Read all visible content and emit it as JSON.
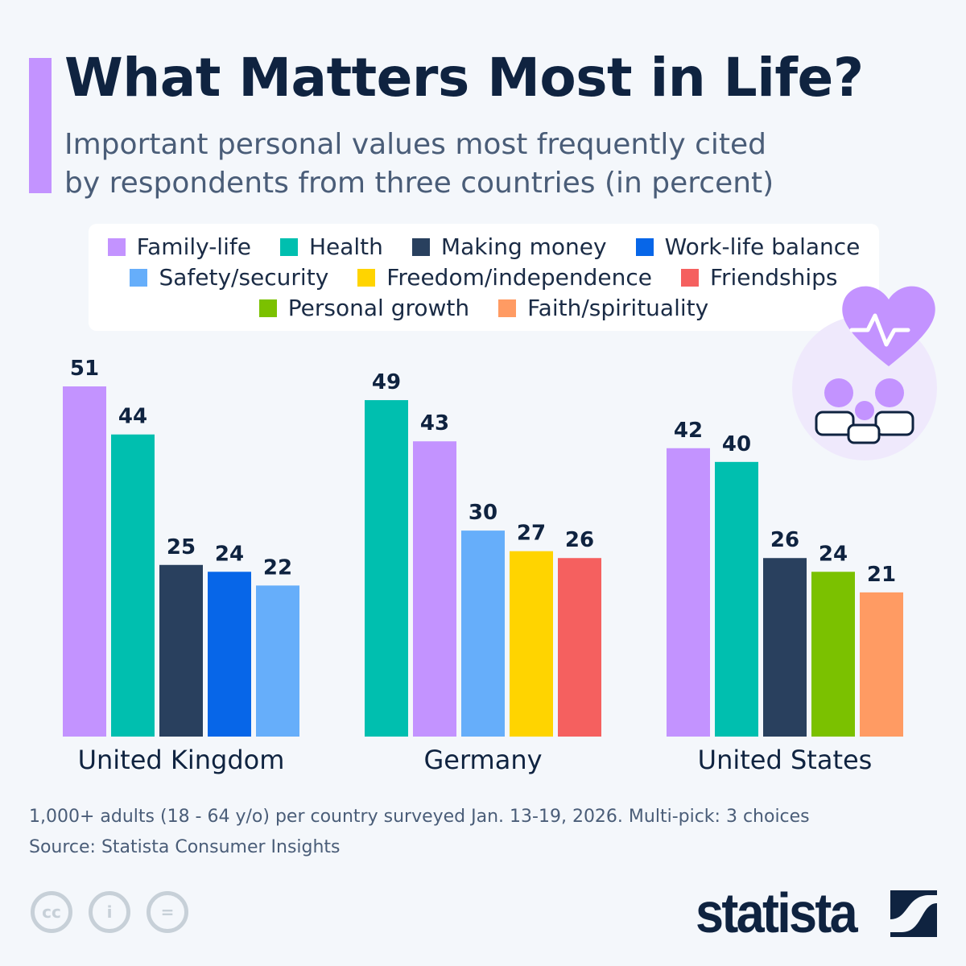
{
  "title": "What Matters Most in Life?",
  "subtitle_line1": "Important personal values most frequently cited",
  "subtitle_line2": "by respondents from three countries (in percent)",
  "legend": [
    {
      "name": "Family-life",
      "color": "#c393ff"
    },
    {
      "name": "Health",
      "color": "#00bfaf"
    },
    {
      "name": "Making money",
      "color": "#29405e"
    },
    {
      "name": "Work-life balance",
      "color": "#0766e8"
    },
    {
      "name": "Safety/security",
      "color": "#66aefa"
    },
    {
      "name": "Freedom/independence",
      "color": "#ffd400"
    },
    {
      "name": "Friendships",
      "color": "#f5605f"
    },
    {
      "name": "Personal growth",
      "color": "#7bc100"
    },
    {
      "name": "Faith/spirituality",
      "color": "#ff9b63"
    }
  ],
  "chart_data": {
    "type": "bar",
    "title": "What Matters Most in Life?",
    "ylim": [
      0,
      51
    ],
    "grid": false,
    "legend_placement": "top",
    "groups": [
      {
        "category": "United Kingdom",
        "bars": [
          {
            "series": "Family-life",
            "value": 51
          },
          {
            "series": "Health",
            "value": 44
          },
          {
            "series": "Making money",
            "value": 25
          },
          {
            "series": "Work-life balance",
            "value": 24
          },
          {
            "series": "Safety/security",
            "value": 22
          }
        ]
      },
      {
        "category": "Germany",
        "bars": [
          {
            "series": "Health",
            "value": 49
          },
          {
            "series": "Family-life",
            "value": 43
          },
          {
            "series": "Safety/security",
            "value": 30
          },
          {
            "series": "Freedom/independence",
            "value": 27
          },
          {
            "series": "Friendships",
            "value": 26
          }
        ]
      },
      {
        "category": "United States",
        "bars": [
          {
            "series": "Family-life",
            "value": 42
          },
          {
            "series": "Health",
            "value": 40
          },
          {
            "series": "Making money",
            "value": 26
          },
          {
            "series": "Personal growth",
            "value": 24
          },
          {
            "series": "Faith/spirituality",
            "value": 21
          }
        ]
      }
    ]
  },
  "footer": {
    "note": "1,000+ adults (18 - 64 y/o) per country surveyed Jan. 13-19, 2026. Multi-pick: 3 choices",
    "source": "Source: Statista Consumer Insights"
  },
  "license_icons": [
    "cc-icon",
    "attribution-icon",
    "no-derivatives-icon"
  ],
  "logo": "statista"
}
